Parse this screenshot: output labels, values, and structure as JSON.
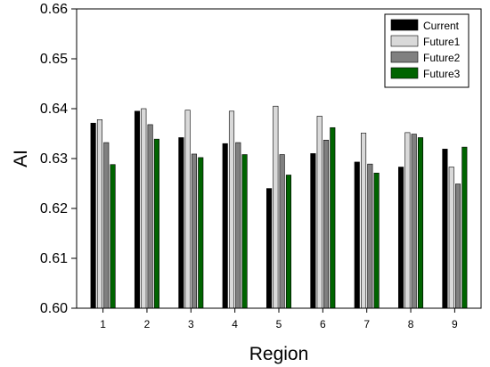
{
  "chart_data": {
    "type": "bar",
    "title": "",
    "xlabel": "Region",
    "ylabel": "AI",
    "ylim": [
      0.6,
      0.66
    ],
    "yticks": [
      "0.60",
      "0.61",
      "0.62",
      "0.63",
      "0.64",
      "0.65",
      "0.66"
    ],
    "grid": false,
    "legend_position": "top-right",
    "categories": [
      "1",
      "2",
      "3",
      "4",
      "5",
      "6",
      "7",
      "8",
      "9"
    ],
    "series": [
      {
        "name": "Current",
        "color": "#000000",
        "values": [
          0.6371,
          0.6395,
          0.6342,
          0.633,
          0.624,
          0.631,
          0.6293,
          0.6283,
          0.6319
        ]
      },
      {
        "name": "Future1",
        "color": "#d9d9d9",
        "values": [
          0.6378,
          0.64,
          0.6397,
          0.6395,
          0.6405,
          0.6385,
          0.6351,
          0.6352,
          0.6283
        ]
      },
      {
        "name": "Future2",
        "color": "#808080",
        "values": [
          0.6332,
          0.6368,
          0.6309,
          0.6332,
          0.6308,
          0.6337,
          0.6289,
          0.6349,
          0.6249
        ]
      },
      {
        "name": "Future3",
        "color": "#006400",
        "values": [
          0.6288,
          0.6339,
          0.6302,
          0.6308,
          0.6267,
          0.6362,
          0.6271,
          0.6342,
          0.6323
        ]
      }
    ]
  }
}
